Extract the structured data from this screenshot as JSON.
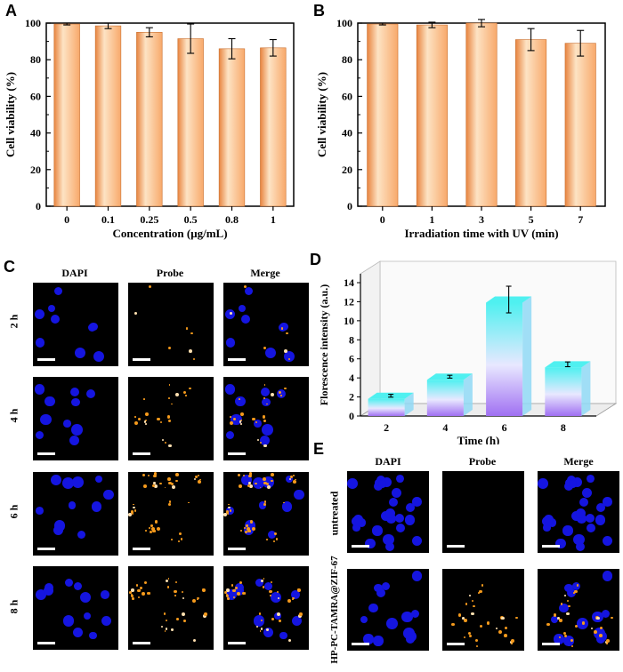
{
  "panels": {
    "A": {
      "letter": "A",
      "chart_data": {
        "type": "bar",
        "categories": [
          "0",
          "0.1",
          "0.25",
          "0.5",
          "0.8",
          "1"
        ],
        "values": [
          99.5,
          98.5,
          95,
          91.5,
          86,
          86.5
        ],
        "errors": [
          0.5,
          1.5,
          2.5,
          8,
          5.5,
          4.5
        ],
        "xlabel": "Concentration (μg/mL)",
        "ylabel": "Cell viability (%)",
        "ylim": [
          0,
          100
        ],
        "yticks": [
          "0",
          "20",
          "40",
          "60",
          "80",
          "100"
        ]
      }
    },
    "B": {
      "letter": "B",
      "chart_data": {
        "type": "bar",
        "categories": [
          "0",
          "1",
          "3",
          "5",
          "7"
        ],
        "values": [
          99.5,
          99,
          100,
          91,
          89
        ],
        "errors": [
          0.5,
          1.5,
          2,
          6,
          7
        ],
        "xlabel": "Irradiation time with UV (min)",
        "ylabel": "Cell viability (%)",
        "ylim": [
          0,
          100
        ],
        "yticks": [
          "0",
          "20",
          "40",
          "60",
          "80",
          "100"
        ]
      }
    },
    "C": {
      "letter": "C",
      "columns": [
        "DAPI",
        "Probe",
        "Merge"
      ],
      "rows": [
        "2 h",
        "4 h",
        "6 h",
        "8 h"
      ]
    },
    "D": {
      "letter": "D",
      "chart_data": {
        "type": "bar",
        "style": "3d",
        "categories": [
          "2",
          "4",
          "6",
          "8"
        ],
        "values": [
          1.8,
          3.8,
          11.9,
          5.1
        ],
        "errors": [
          0.15,
          0.15,
          1.4,
          0.25
        ],
        "xlabel": "Time (h)",
        "ylabel": "Florescence intensity (a.u.)",
        "ylim": [
          0,
          14
        ],
        "yticks": [
          "0",
          "2",
          "4",
          "6",
          "8",
          "10",
          "12",
          "14"
        ]
      }
    },
    "E": {
      "letter": "E",
      "columns": [
        "DAPI",
        "Probe",
        "Merge"
      ],
      "rows": [
        "untreated",
        "HP-PC-TAMRA@ZIF-67"
      ]
    }
  },
  "colors": {
    "bar_light": "#fde3c4",
    "bar_mid": "#f8a96b",
    "bar_dark": "#e8843f",
    "nucleus": "#1515e0",
    "probe": "#f59a1c",
    "d_top": "#4ff0f0",
    "d_bottom": "#a070f2"
  }
}
